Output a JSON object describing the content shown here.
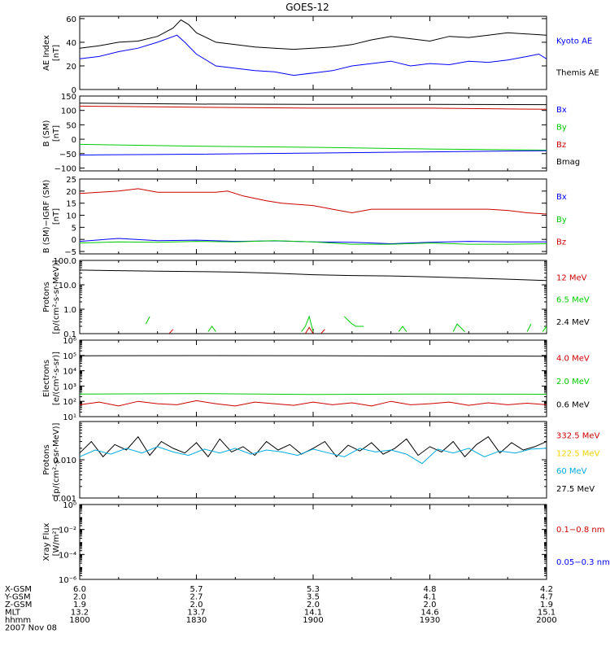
{
  "title": "GOES-12",
  "colors": {
    "black": "#000000",
    "blue": "#0000ff",
    "red": "#cc0000",
    "green": "#00cc00",
    "cyan": "#00aadd",
    "yellow": "#f2d300"
  },
  "chart_data": [
    {
      "id": "ae",
      "type": "line",
      "ylabel": [
        "AE Index",
        "[nT]"
      ],
      "scale": "linear",
      "ylim": [
        0,
        62
      ],
      "yticks": [
        {
          "v": 0,
          "l": "0"
        },
        {
          "v": 20,
          "l": "20"
        },
        {
          "v": 40,
          "l": "40"
        },
        {
          "v": 60,
          "l": "60"
        }
      ],
      "legend": [
        {
          "text": "Kyoto AE",
          "color": "#0000ff"
        },
        {
          "text": "Themis AE",
          "color": "#000000"
        }
      ],
      "series": [
        {
          "color": "#000000",
          "x": [
            1800,
            1805,
            1810,
            1815,
            1820,
            1824,
            1826,
            1828,
            1830,
            1835,
            1840,
            1845,
            1850,
            1855,
            1900,
            1905,
            1910,
            1915,
            1920,
            1925,
            1930,
            1935,
            1940,
            1945,
            1950,
            1955,
            2000
          ],
          "y": [
            35,
            37,
            40,
            41,
            45,
            52,
            59,
            55,
            48,
            40,
            38,
            36,
            35,
            34,
            35,
            36,
            38,
            42,
            45,
            43,
            41,
            45,
            44,
            46,
            48,
            47,
            46
          ]
        },
        {
          "color": "#0000ff",
          "x": [
            1800,
            1805,
            1810,
            1815,
            1820,
            1825,
            1827,
            1830,
            1835,
            1840,
            1845,
            1850,
            1855,
            1900,
            1905,
            1910,
            1915,
            1920,
            1925,
            1930,
            1935,
            1940,
            1945,
            1950,
            1955,
            1958,
            2000
          ],
          "y": [
            26,
            28,
            32,
            35,
            40,
            46,
            40,
            30,
            20,
            18,
            16,
            15,
            12,
            14,
            16,
            20,
            22,
            24,
            20,
            22,
            21,
            24,
            23,
            25,
            28,
            30,
            26
          ]
        }
      ]
    },
    {
      "id": "bsm",
      "type": "line",
      "ylabel": [
        "B (SM)",
        "[nT]"
      ],
      "scale": "linear",
      "ylim": [
        -110,
        150
      ],
      "yticks": [
        {
          "v": -100,
          "l": "−100"
        },
        {
          "v": -50,
          "l": "−50"
        },
        {
          "v": 0,
          "l": "0"
        },
        {
          "v": 50,
          "l": "50"
        },
        {
          "v": 100,
          "l": "100"
        },
        {
          "v": 150,
          "l": "150"
        }
      ],
      "legend": [
        {
          "text": "Bx",
          "color": "#0000ff"
        },
        {
          "text": "By",
          "color": "#00cc00"
        },
        {
          "text": "Bz",
          "color": "#cc0000"
        },
        {
          "text": "Bmag",
          "color": "#000000"
        }
      ],
      "series": [
        {
          "color": "#000000",
          "x": [
            1800,
            1830,
            1900,
            1930,
            2000
          ],
          "y": [
            125,
            122,
            121,
            121,
            120
          ]
        },
        {
          "color": "#cc0000",
          "x": [
            1800,
            1830,
            1900,
            1930,
            2000
          ],
          "y": [
            115,
            111,
            108,
            108,
            104
          ]
        },
        {
          "color": "#00cc00",
          "x": [
            1800,
            1830,
            1900,
            1930,
            2000
          ],
          "y": [
            -18,
            -24,
            -28,
            -34,
            -38
          ]
        },
        {
          "color": "#0000ff",
          "x": [
            1800,
            1830,
            1900,
            1930,
            2000
          ],
          "y": [
            -55,
            -52,
            -48,
            -44,
            -40
          ]
        }
      ]
    },
    {
      "id": "bigrf",
      "type": "line",
      "ylabel": [
        "B (SM)−IGRF (SM)",
        "[nT]"
      ],
      "scale": "linear",
      "ylim": [
        -6,
        25
      ],
      "yticks": [
        {
          "v": -5,
          "l": "−5"
        },
        {
          "v": 0,
          "l": "0"
        },
        {
          "v": 5,
          "l": "5"
        },
        {
          "v": 10,
          "l": "10"
        },
        {
          "v": 15,
          "l": "15"
        },
        {
          "v": 20,
          "l": "20"
        },
        {
          "v": 25,
          "l": "25"
        }
      ],
      "legend": [
        {
          "text": "Bx",
          "color": "#0000ff"
        },
        {
          "text": "By",
          "color": "#00cc00"
        },
        {
          "text": "Bz",
          "color": "#cc0000"
        }
      ],
      "series": [
        {
          "color": "#cc0000",
          "x": [
            1800,
            1810,
            1815,
            1820,
            1835,
            1838,
            1842,
            1848,
            1852,
            1900,
            1905,
            1910,
            1915,
            1945,
            1950,
            1955,
            2000
          ],
          "y": [
            19,
            20,
            21,
            19.5,
            19.5,
            20,
            18,
            16,
            15,
            14,
            12.5,
            11,
            12.5,
            12.5,
            12,
            11,
            10.5
          ]
        },
        {
          "color": "#0000ff",
          "x": [
            1800,
            1810,
            1820,
            1830,
            1840,
            1850,
            1900,
            1910,
            1920,
            1930,
            1940,
            1950,
            2000
          ],
          "y": [
            -0.8,
            0.4,
            -0.5,
            -0.3,
            -0.8,
            -0.6,
            -1,
            -1.2,
            -1.8,
            -1.2,
            -0.8,
            -1,
            -1
          ]
        },
        {
          "color": "#00cc00",
          "x": [
            1800,
            1810,
            1820,
            1830,
            1840,
            1850,
            1900,
            1910,
            1920,
            1930,
            1940,
            1950,
            2000
          ],
          "y": [
            -1.5,
            -1,
            -1.2,
            -0.8,
            -1,
            -0.5,
            -1,
            -2,
            -2,
            -1.5,
            -2,
            -2,
            -1.8
          ]
        }
      ]
    },
    {
      "id": "protons1",
      "type": "line",
      "ylabel": [
        "Protons",
        "[p/(cm²-s-sr-MeV)]"
      ],
      "scale": "log",
      "ylim": [
        0.1,
        100
      ],
      "yticks": [
        {
          "v": 0.1,
          "l": "0.1"
        },
        {
          "v": 1,
          "l": "1.0"
        },
        {
          "v": 10,
          "l": "10.0"
        },
        {
          "v": 100,
          "l": "100.0"
        }
      ],
      "legend": [
        {
          "text": "12 MeV",
          "color": "#cc0000"
        },
        {
          "text": "6.5 MeV",
          "color": "#00cc00"
        },
        {
          "text": "2.4 MeV",
          "color": "#000000"
        }
      ],
      "series": [
        {
          "color": "#000000",
          "x": [
            1800,
            1810,
            1820,
            1830,
            1840,
            1850,
            1900,
            1910,
            1920,
            1930,
            1940,
            1950,
            2000
          ],
          "y": [
            40,
            38,
            36,
            35,
            33,
            30,
            26,
            24,
            23,
            21,
            19,
            17,
            15
          ]
        }
      ],
      "segments": [
        {
          "color": "#00cc00",
          "pts": [
            [
              1817,
              0.25
            ],
            [
              1818,
              0.5
            ]
          ]
        },
        {
          "color": "#00cc00",
          "pts": [
            [
              1833,
              0.12
            ],
            [
              1834,
              0.2
            ],
            [
              1835,
              0.12
            ]
          ]
        },
        {
          "color": "#00cc00",
          "pts": [
            [
              1857,
              0.12
            ],
            [
              1858,
              0.2
            ],
            [
              1859,
              0.5
            ],
            [
              1860,
              0.12
            ]
          ]
        },
        {
          "color": "#00cc00",
          "pts": [
            [
              1908,
              0.5
            ],
            [
              1910,
              0.25
            ],
            [
              1911,
              0.2
            ],
            [
              1913,
              0.2
            ]
          ]
        },
        {
          "color": "#00cc00",
          "pts": [
            [
              1922,
              0.12
            ],
            [
              1923,
              0.2
            ],
            [
              1924,
              0.12
            ]
          ]
        },
        {
          "color": "#00cc00",
          "pts": [
            [
              1936,
              0.12
            ],
            [
              1937,
              0.25
            ],
            [
              1939,
              0.12
            ]
          ]
        },
        {
          "color": "#00cc00",
          "pts": [
            [
              1955,
              0.12
            ],
            [
              1956,
              0.25
            ]
          ]
        },
        {
          "color": "#00cc00",
          "pts": [
            [
              1959,
              0.12
            ],
            [
              1960,
              0.2
            ],
            [
              2000,
              0.12
            ]
          ]
        },
        {
          "color": "#cc0000",
          "pts": [
            [
              1823,
              0.1
            ],
            [
              1824,
              0.15
            ]
          ]
        },
        {
          "color": "#cc0000",
          "pts": [
            [
              1858,
              0.1
            ],
            [
              1859,
              0.18
            ],
            [
              1860,
              0.1
            ]
          ]
        },
        {
          "color": "#cc0000",
          "pts": [
            [
              1902,
              0.1
            ],
            [
              1903,
              0.15
            ]
          ]
        }
      ]
    },
    {
      "id": "electrons",
      "type": "line",
      "ylabel": [
        "Electrons",
        "[e/(cm²-s-sr)]"
      ],
      "scale": "log",
      "ylim": [
        10,
        1000000
      ],
      "yticks": [
        {
          "v": 10,
          "l": "10¹"
        },
        {
          "v": 100,
          "l": "10²"
        },
        {
          "v": 1000,
          "l": "10³"
        },
        {
          "v": 10000,
          "l": "10⁴"
        },
        {
          "v": 100000,
          "l": "10⁵"
        },
        {
          "v": 1000000,
          "l": "10⁶"
        }
      ],
      "legend": [
        {
          "text": "4.0 MeV",
          "color": "#cc0000"
        },
        {
          "text": "2.0 MeV",
          "color": "#00cc00"
        },
        {
          "text": "0.6 MeV",
          "color": "#000000"
        }
      ],
      "series": [
        {
          "color": "#000000",
          "x": [
            1800,
            1830,
            1900,
            1930,
            2000
          ],
          "y": [
            95000,
            98000,
            96000,
            92000,
            90000
          ]
        },
        {
          "color": "#00cc00",
          "x": [
            1800,
            1830,
            1900,
            1930,
            2000
          ],
          "y": [
            300,
            320,
            280,
            300,
            290
          ]
        },
        {
          "color": "#cc0000",
          "x": [
            1800,
            1805,
            1810,
            1815,
            1820,
            1825,
            1830,
            1835,
            1840,
            1845,
            1850,
            1855,
            1900,
            1905,
            1910,
            1915,
            1920,
            1925,
            1930,
            1935,
            1940,
            1945,
            1950,
            1955,
            2000
          ],
          "y": [
            60,
            90,
            50,
            100,
            70,
            60,
            110,
            70,
            50,
            90,
            70,
            55,
            90,
            60,
            80,
            50,
            100,
            60,
            70,
            90,
            55,
            80,
            60,
            75,
            60
          ]
        }
      ]
    },
    {
      "id": "protons2",
      "type": "line",
      "ylabel": [
        "Protons",
        "[p/(cm²-s-sr-MeV)]"
      ],
      "scale": "log",
      "ylim": [
        0.001,
        0.1
      ],
      "yticks": [
        {
          "v": 0.001,
          "l": "0.001"
        },
        {
          "v": 0.01,
          "l": "0.010"
        }
      ],
      "legend": [
        {
          "text": "332.5 MeV",
          "color": "#cc0000"
        },
        {
          "text": "122.5 MeV",
          "color": "#f2d300"
        },
        {
          "text": "60 MeV",
          "color": "#00aadd"
        },
        {
          "text": "27.5 MeV",
          "color": "#000000"
        }
      ],
      "series": [
        {
          "color": "#000000",
          "x": [
            1800,
            1803,
            1806,
            1809,
            1812,
            1815,
            1818,
            1821,
            1824,
            1827,
            1830,
            1833,
            1836,
            1839,
            1842,
            1845,
            1848,
            1851,
            1854,
            1857,
            1900,
            1903,
            1906,
            1909,
            1912,
            1915,
            1918,
            1921,
            1924,
            1927,
            1930,
            1933,
            1936,
            1939,
            1942,
            1945,
            1948,
            1951,
            1954,
            1957,
            2000
          ],
          "y": [
            0.015,
            0.03,
            0.012,
            0.025,
            0.018,
            0.04,
            0.013,
            0.03,
            0.02,
            0.015,
            0.028,
            0.012,
            0.035,
            0.016,
            0.022,
            0.013,
            0.03,
            0.018,
            0.025,
            0.014,
            0.02,
            0.03,
            0.012,
            0.024,
            0.017,
            0.028,
            0.014,
            0.02,
            0.035,
            0.013,
            0.022,
            0.016,
            0.03,
            0.012,
            0.025,
            0.04,
            0.015,
            0.028,
            0.018,
            0.022,
            0.03
          ]
        },
        {
          "color": "#00aadd",
          "x": [
            1800,
            1804,
            1808,
            1812,
            1816,
            1820,
            1824,
            1828,
            1832,
            1836,
            1840,
            1844,
            1848,
            1852,
            1856,
            1900,
            1904,
            1908,
            1912,
            1916,
            1920,
            1924,
            1928,
            1932,
            1936,
            1940,
            1944,
            1948,
            1952,
            1956,
            2000
          ],
          "y": [
            0.012,
            0.018,
            0.014,
            0.02,
            0.015,
            0.022,
            0.016,
            0.013,
            0.019,
            0.015,
            0.02,
            0.014,
            0.018,
            0.016,
            0.013,
            0.019,
            0.015,
            0.012,
            0.02,
            0.016,
            0.018,
            0.014,
            0.008,
            0.019,
            0.015,
            0.02,
            0.012,
            0.017,
            0.015,
            0.019,
            0.02
          ]
        }
      ]
    },
    {
      "id": "xray",
      "type": "line",
      "ylabel": [
        "Xray Flux",
        "[W/m²]"
      ],
      "scale": "log",
      "ylim": [
        1e-06,
        1
      ],
      "yticks": [
        {
          "v": 1e-06,
          "l": "10⁻⁶"
        },
        {
          "v": 0.0001,
          "l": "10⁻⁴"
        },
        {
          "v": 0.01,
          "l": "10⁻²"
        },
        {
          "v": 1,
          "l": "10⁰"
        }
      ],
      "legend": [
        {
          "text": "0.1−0.8 nm",
          "color": "#cc0000"
        },
        {
          "text": "0.05−0.3 nm",
          "color": "#0000ff"
        }
      ],
      "series": []
    }
  ],
  "x_axis": {
    "range": [
      1800,
      2000
    ],
    "ticks": [
      1800,
      1830,
      1900,
      1930,
      2000
    ],
    "rows": [
      {
        "label": "X-GSM",
        "values": [
          "6.0",
          "5.7",
          "5.3",
          "4.8",
          "4.2"
        ]
      },
      {
        "label": "Y-GSM",
        "values": [
          "2.0",
          "2.7",
          "3.5",
          "4.1",
          "4.7"
        ]
      },
      {
        "label": "Z-GSM",
        "values": [
          "1.9",
          "2.0",
          "2.0",
          "2.0",
          "1.9"
        ]
      },
      {
        "label": "MLT",
        "values": [
          "13.2",
          "13.7",
          "14.1",
          "14.6",
          "15.1"
        ]
      },
      {
        "label": "hhmm",
        "values": [
          "1800",
          "1830",
          "1900",
          "1930",
          "2000"
        ]
      }
    ],
    "date": "2007 Nov 08"
  }
}
